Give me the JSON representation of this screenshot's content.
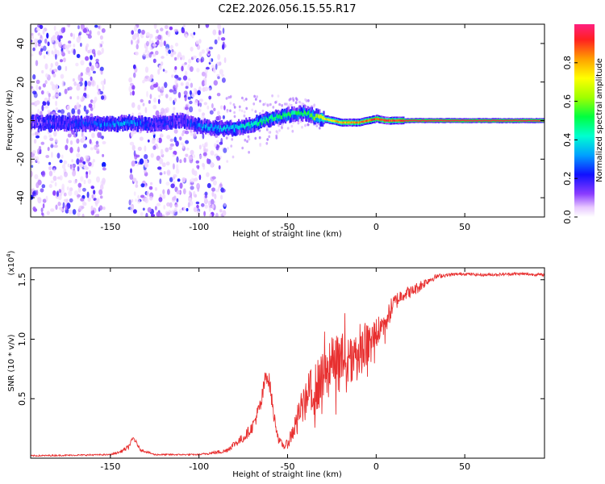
{
  "title": "C2E2.2026.056.15.55.R17",
  "chart_data": [
    {
      "type": "heatmap",
      "xlabel": "Height of straight line (km)",
      "ylabel": "Frequency (Hz)",
      "xlim": [
        -195,
        95
      ],
      "ylim": [
        -50,
        50
      ],
      "xticks": [
        -150,
        -100,
        -50,
        0,
        50
      ],
      "yticks": [
        -40,
        -20,
        0,
        20,
        40
      ],
      "colorbar": {
        "label": "Normalized spectral amplitude",
        "range": [
          0,
          1
        ],
        "ticks": [
          "0.0",
          "0.2",
          "0.4",
          "0.6",
          "0.8"
        ],
        "tick_values": [
          0.0,
          0.2,
          0.4,
          0.6,
          0.8
        ]
      },
      "ridge": {
        "x": [
          -195,
          -150,
          -140,
          -130,
          -110,
          -100,
          -90,
          -80,
          -70,
          -60,
          -50,
          -40,
          -35,
          -30,
          -20,
          -10,
          -5,
          0,
          5,
          10,
          20,
          50,
          95
        ],
        "freq": [
          -1,
          -2,
          -1,
          -2,
          0,
          -3,
          -4,
          -4,
          -2,
          1,
          3,
          4,
          2,
          1,
          -1,
          -1,
          0,
          1,
          0,
          0,
          0,
          0,
          0
        ],
        "amplitude": [
          0.1,
          0.3,
          0.35,
          0.2,
          0.15,
          0.3,
          0.35,
          0.4,
          0.45,
          0.5,
          0.5,
          0.5,
          0.6,
          0.7,
          0.8,
          0.85,
          0.85,
          0.9,
          0.9,
          0.9,
          0.95,
          0.95,
          0.95
        ]
      }
    },
    {
      "type": "line",
      "xlabel": "Height of straight line (km)",
      "ylabel": "SNR (10 * v/v)",
      "scale_label": "(x10",
      "scale_exponent": "4",
      "scale_suffix": ")",
      "xlim": [
        -195,
        95
      ],
      "ylim": [
        0,
        1.6
      ],
      "xticks": [
        -150,
        -100,
        -50,
        0,
        50
      ],
      "yticks": [
        0.5,
        1.0,
        1.5
      ],
      "ytick_labels": [
        "0.5",
        "1.0",
        "1.5"
      ],
      "series": [
        {
          "name": "SNR",
          "color": "#e83030",
          "x": [
            -195,
            -150,
            -145,
            -140,
            -137,
            -133,
            -125,
            -100,
            -85,
            -80,
            -75,
            -70,
            -65,
            -62,
            -60,
            -58,
            -55,
            -52,
            -50,
            -45,
            -40,
            -35,
            -30,
            -25,
            -20,
            -15,
            -10,
            -5,
            0,
            5,
            10,
            15,
            20,
            25,
            30,
            35,
            40,
            50,
            60,
            80,
            95
          ],
          "y": [
            0.02,
            0.03,
            0.05,
            0.09,
            0.17,
            0.07,
            0.03,
            0.03,
            0.06,
            0.12,
            0.17,
            0.26,
            0.45,
            0.72,
            0.62,
            0.38,
            0.15,
            0.1,
            0.12,
            0.3,
            0.5,
            0.58,
            0.65,
            0.78,
            0.82,
            0.85,
            0.88,
            0.95,
            1.05,
            1.15,
            1.3,
            1.38,
            1.4,
            1.45,
            1.5,
            1.53,
            1.54,
            1.55,
            1.54,
            1.55,
            1.54
          ],
          "noise": [
            0.006,
            0.006,
            0.01,
            0.02,
            0.02,
            0.01,
            0.006,
            0.006,
            0.02,
            0.03,
            0.04,
            0.05,
            0.08,
            0.08,
            0.08,
            0.06,
            0.03,
            0.03,
            0.04,
            0.12,
            0.18,
            0.22,
            0.24,
            0.24,
            0.24,
            0.22,
            0.2,
            0.18,
            0.14,
            0.12,
            0.08,
            0.06,
            0.05,
            0.05,
            0.03,
            0.02,
            0.015,
            0.012,
            0.012,
            0.012,
            0.012
          ]
        }
      ]
    }
  ]
}
